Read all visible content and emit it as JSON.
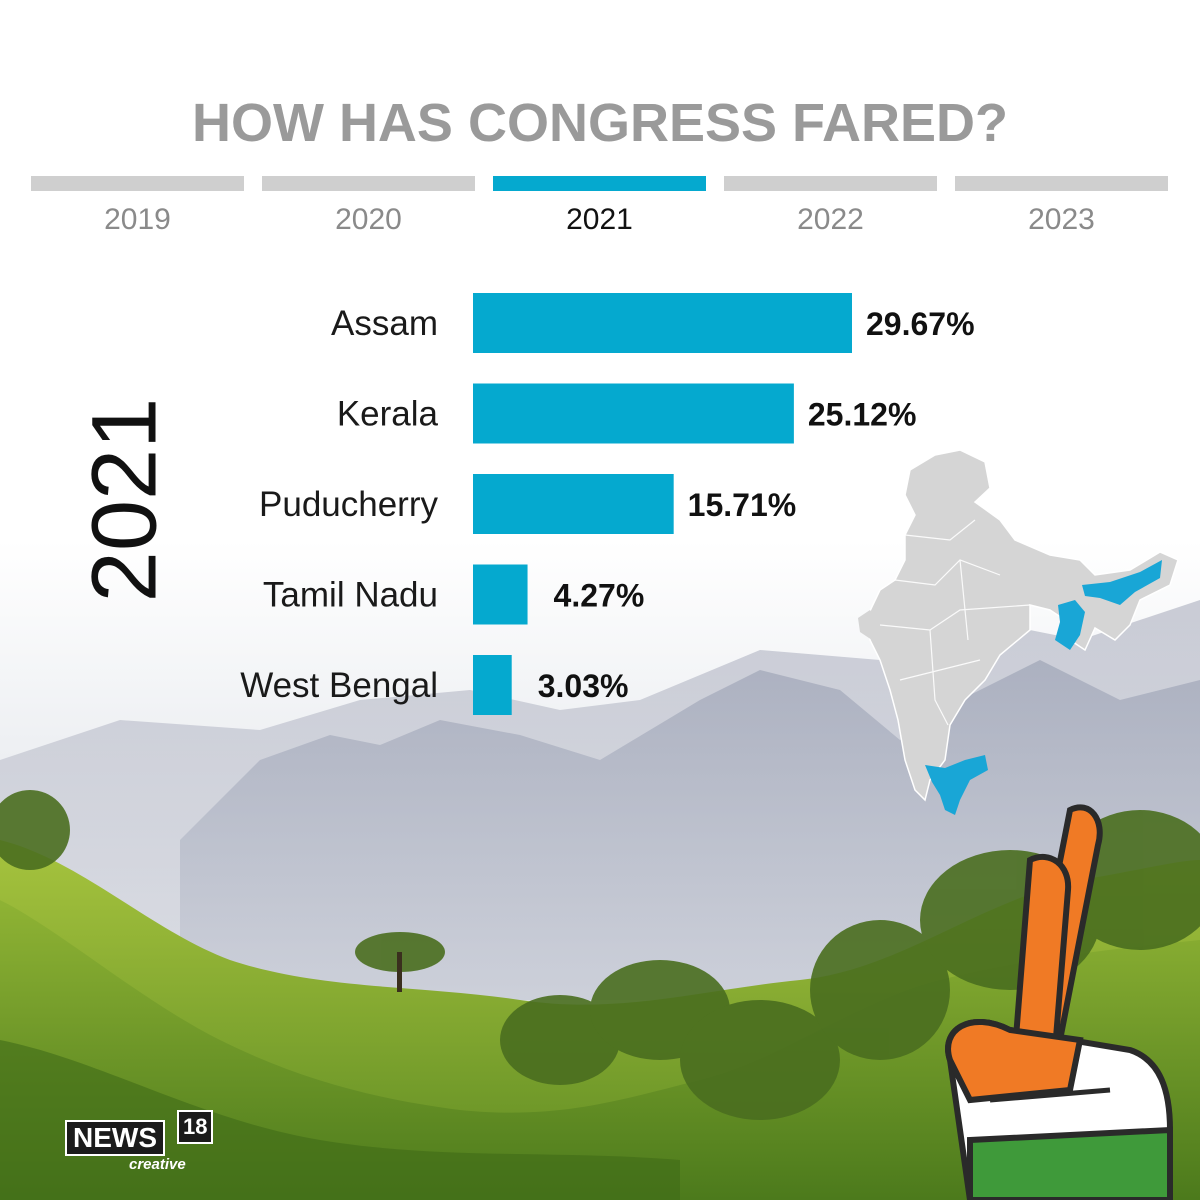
{
  "header": {
    "title": "HOW HAS CONGRESS FARED?",
    "tabs": [
      {
        "label": "2019",
        "active": false
      },
      {
        "label": "2020",
        "active": false
      },
      {
        "label": "2021",
        "active": true
      },
      {
        "label": "2022",
        "active": false
      },
      {
        "label": "2023",
        "active": false
      }
    ]
  },
  "side_label": "2021",
  "chart_data": {
    "type": "bar",
    "orientation": "horizontal",
    "categories": [
      "Assam",
      "Kerala",
      "Puducherry",
      "Tamil Nadu",
      "West Bengal"
    ],
    "values": [
      29.67,
      25.12,
      15.71,
      4.27,
      3.03
    ],
    "value_labels": [
      "29.67%",
      "25.12%",
      "15.71%",
      "4.27%",
      "3.03%"
    ],
    "xlim": [
      0,
      29.67
    ],
    "grid": false,
    "bar_color": "#05a9cf"
  },
  "map": {
    "icon": "india-map-icon",
    "highlight_color": "#19a6d6",
    "base_color": "#d5d5d5"
  },
  "decor": {
    "hand_icon": "crossed-fingers-hand-icon",
    "tricolor": [
      "#f07a25",
      "#ffffff",
      "#3f9a3a"
    ]
  },
  "logo": {
    "brand": "NEWS",
    "number": "18",
    "sub": "creative"
  },
  "colors": {
    "title": "#9a9a9a",
    "tab_inactive": "#cfcfcf",
    "tab_active": "#05a9cf"
  }
}
